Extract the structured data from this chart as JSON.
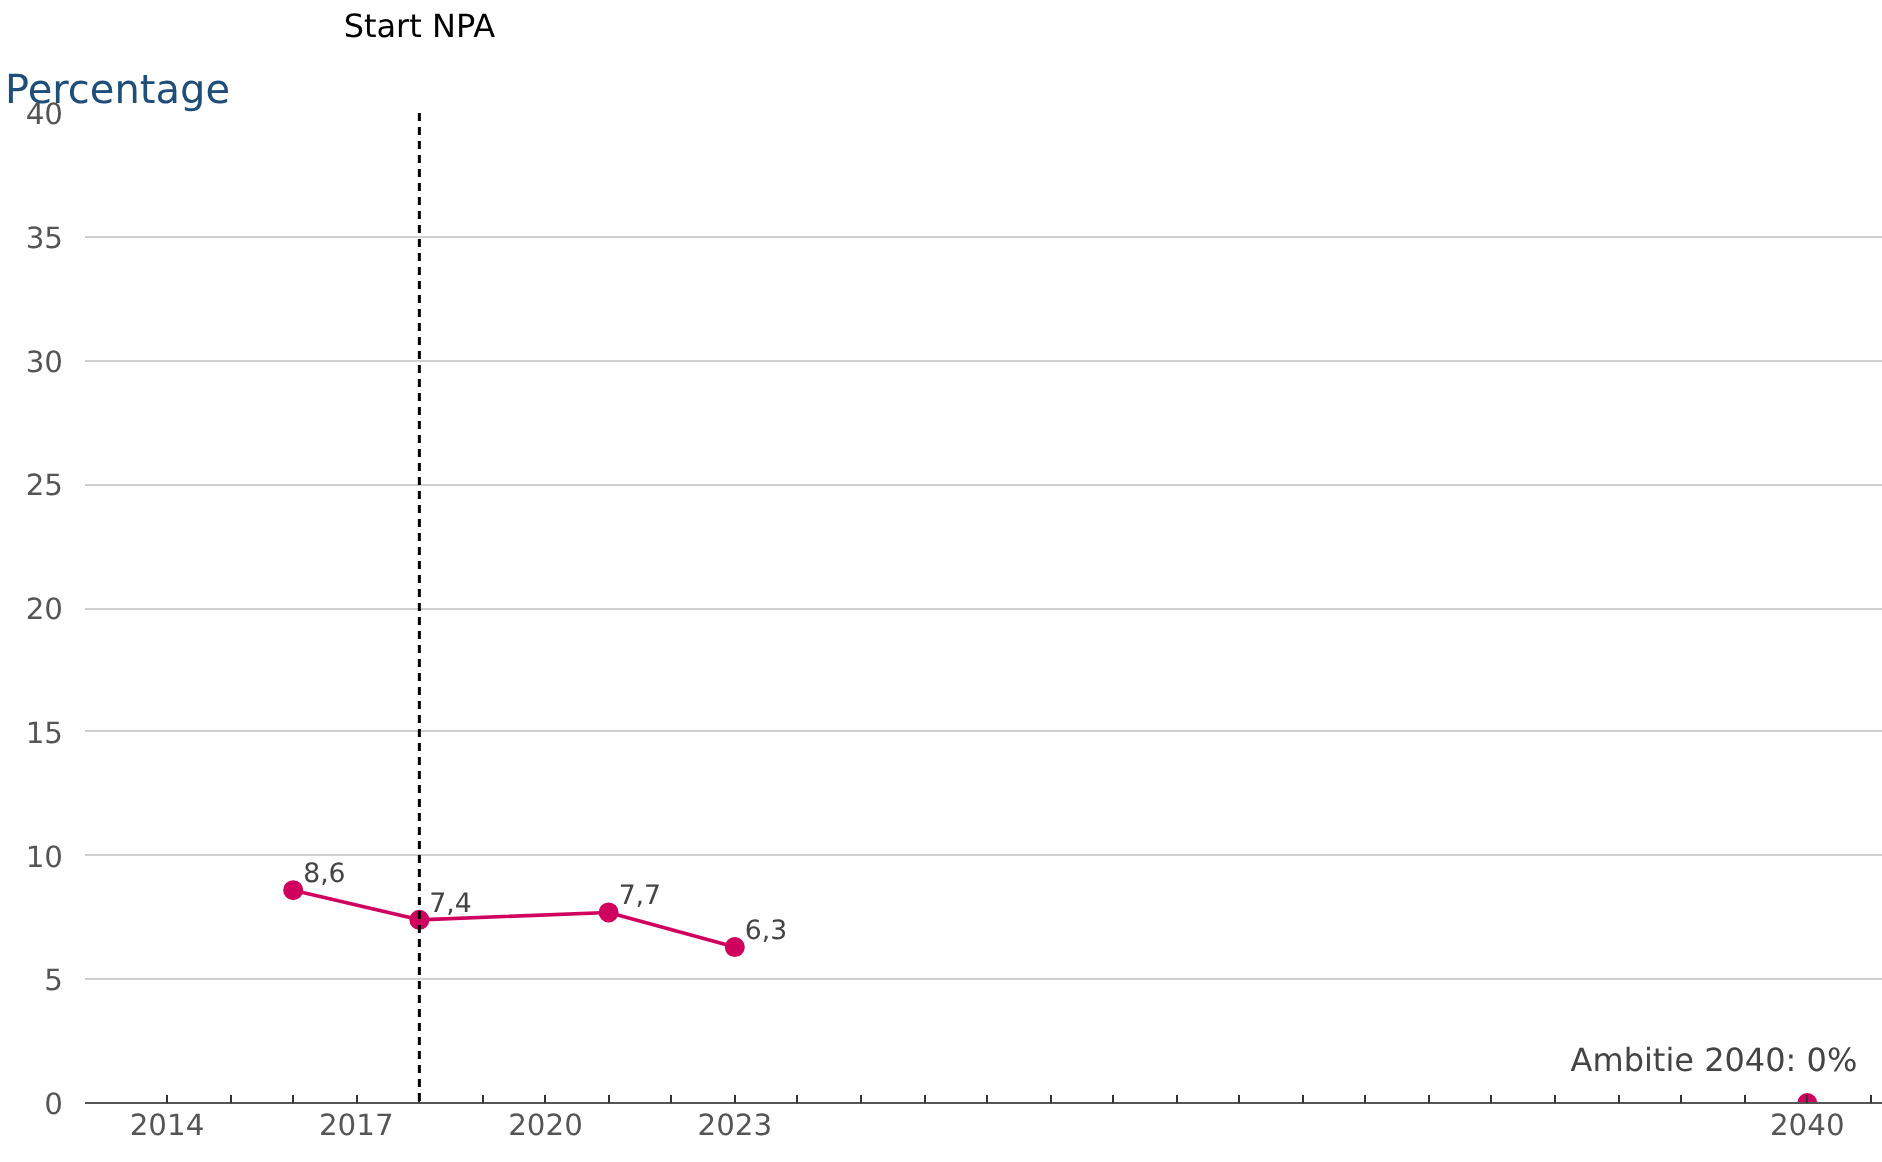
{
  "chart_data": {
    "type": "line",
    "ylabel": "Percentage",
    "series": [
      {
        "color": "#d0005f",
        "x": [
          2016,
          2018,
          2021,
          2023
        ],
        "values": [
          8.6,
          7.4,
          7.7,
          6.3
        ],
        "value_labels": [
          "8,6",
          "7,4",
          "7,7",
          "6,3"
        ]
      },
      {
        "type": "scatter",
        "color": "#d0005f",
        "x": [
          2040
        ],
        "values": [
          0
        ]
      }
    ],
    "marker": "circle",
    "line_style": "solid",
    "xlim": [
      2012.7,
      2041.2
    ],
    "ylim": [
      0,
      40
    ],
    "xticks": [
      2014,
      {
        "value": 2015,
        "label": null
      },
      {
        "value": 2016,
        "label": null
      },
      2017,
      {
        "value": 2018,
        "label": null
      },
      {
        "value": 2019,
        "label": null
      },
      2020,
      {
        "value": 2021,
        "label": null
      },
      {
        "value": 2022,
        "label": null
      },
      2023,
      {
        "value": 2024,
        "label": null
      },
      {
        "value": 2025,
        "label": null
      },
      {
        "value": 2026,
        "label": null
      },
      {
        "value": 2027,
        "label": null
      },
      {
        "value": 2028,
        "label": null
      },
      {
        "value": 2029,
        "label": null
      },
      {
        "value": 2030,
        "label": null
      },
      {
        "value": 2031,
        "label": null
      },
      {
        "value": 2032,
        "label": null
      },
      {
        "value": 2033,
        "label": null
      },
      {
        "value": 2034,
        "label": null
      },
      {
        "value": 2035,
        "label": null
      },
      {
        "value": 2036,
        "label": null
      },
      {
        "value": 2037,
        "label": null
      },
      {
        "value": 2038,
        "label": null
      },
      {
        "value": 2039,
        "label": null
      },
      2040,
      {
        "value": 2041,
        "label": null
      }
    ],
    "yticks": [
      0,
      5,
      10,
      15,
      20,
      25,
      30,
      35,
      40
    ],
    "grid": "y",
    "ref_lines": [
      {
        "axis": "x",
        "value": 2018,
        "label": "Start NPA",
        "color": "#000000",
        "line_style": "dashed"
      }
    ],
    "annotations": [
      {
        "text": "Ambitie 2040: 0%",
        "x": 2040,
        "y": 0
      }
    ]
  }
}
